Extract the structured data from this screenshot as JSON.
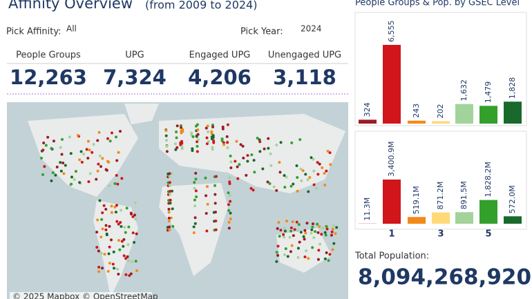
{
  "header": {
    "title": "Affinity Overview",
    "subtitle": "(from 2009 to 2024)"
  },
  "filters": {
    "affinity_label": "Pick Affinity:",
    "affinity_value": "All",
    "year_label": "Pick Year:",
    "year_value": "2024"
  },
  "kpis": [
    {
      "label": "People Groups",
      "value": "12,263"
    },
    {
      "label": "UPG",
      "value": "7,324"
    },
    {
      "label": "Engaged UPG",
      "value": "4,206"
    },
    {
      "label": "Unengaged UPG",
      "value": "3,118"
    }
  ],
  "map": {
    "attribution": "© 2025 Mapbox © OpenStreetMap"
  },
  "panel_title": "People Groups & Pop. by GSEC Level",
  "chart_data": [
    {
      "type": "bar",
      "categories": [
        null,
        null,
        null,
        null,
        null,
        null,
        null
      ],
      "values": [
        324,
        6555,
        243,
        202,
        1632,
        1479,
        1828
      ],
      "value_labels": [
        "324",
        "6,555",
        "243",
        "202",
        "1,632",
        "1,479",
        "1,828"
      ],
      "colors": [
        "#9b1b24",
        "#d0161b",
        "#f28a1a",
        "#fdd97a",
        "#a2d39b",
        "#33a02c",
        "#19692c"
      ]
    },
    {
      "type": "bar",
      "categories": [
        null,
        "1",
        null,
        "3",
        null,
        "5",
        null
      ],
      "values": [
        11.3,
        3400.9,
        519.1,
        871.2,
        891.5,
        1828.2,
        572.0
      ],
      "value_labels": [
        "11.3M",
        "3,400.9M",
        "519.1M",
        "871.2M",
        "891.5M",
        "1,828.2M",
        "572.0M"
      ],
      "colors": [
        "#9b1b24",
        "#d0161b",
        "#f28a1a",
        "#fdd97a",
        "#a2d39b",
        "#33a02c",
        "#19692c"
      ]
    }
  ],
  "total": {
    "label": "Total Population:",
    "value": "8,094,268,920"
  }
}
